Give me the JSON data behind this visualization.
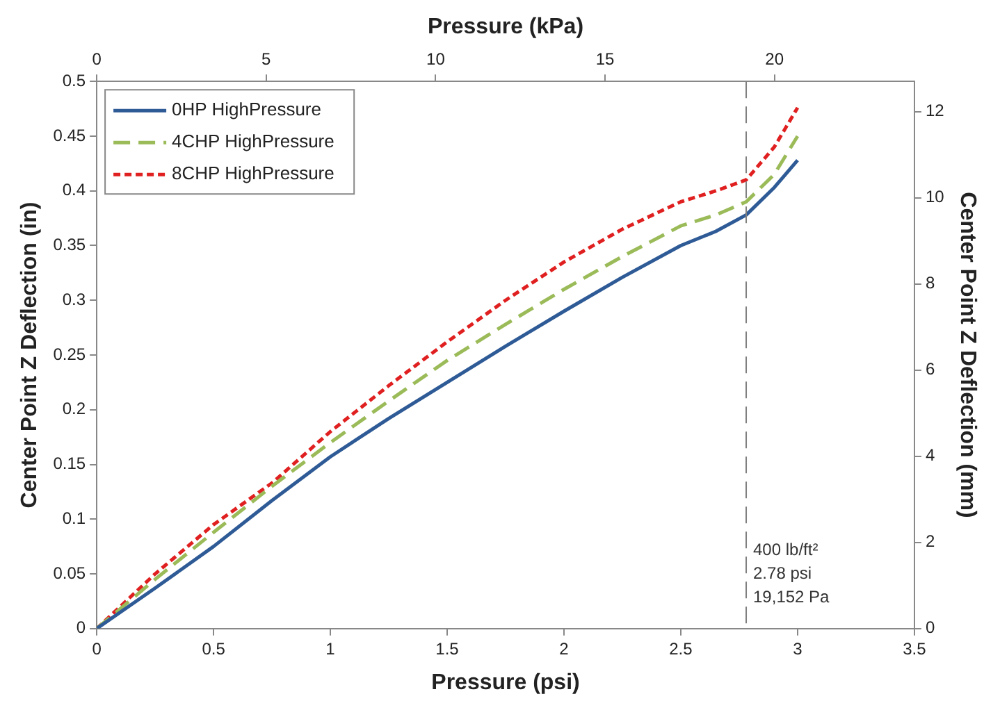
{
  "chart_data": {
    "type": "line",
    "xlabel": "Pressure (psi)",
    "ylabel": "Center Point Z Deflection (in)",
    "x2label": "Pressure (kPa)",
    "y2label": "Center Point Z Deflection (mm)",
    "xlim": [
      0,
      3.5
    ],
    "xticks": [
      0,
      0.5,
      1,
      1.5,
      2,
      2.5,
      3,
      3.5
    ],
    "ylim": [
      0,
      0.5
    ],
    "yticks": [
      0,
      0.05,
      0.1,
      0.15,
      0.2,
      0.25,
      0.3,
      0.35,
      0.4,
      0.45,
      0.5
    ],
    "x2lim": [
      0,
      24.13
    ],
    "x2ticks": [
      0,
      5,
      10,
      15,
      20
    ],
    "y2lim": [
      0,
      12.7
    ],
    "y2ticks": [
      0,
      2,
      4,
      6,
      8,
      10,
      12
    ],
    "grid": false,
    "legend": "top left",
    "marker": "none",
    "series": [
      {
        "name": "0HP HighPressure",
        "color": "#2e5a96",
        "line_style": "solid",
        "x": [
          0,
          0.25,
          0.5,
          0.75,
          1,
          1.25,
          1.5,
          1.75,
          2,
          2.25,
          2.5,
          2.65,
          2.78,
          2.9,
          3
        ],
        "values": [
          0,
          0.037,
          0.075,
          0.117,
          0.157,
          0.192,
          0.225,
          0.258,
          0.29,
          0.321,
          0.35,
          0.363,
          0.378,
          0.403,
          0.428
        ]
      },
      {
        "name": "4CHP HighPressure",
        "color": "#9bbb59",
        "line_style": "dashed",
        "x": [
          0,
          0.25,
          0.5,
          0.75,
          1,
          1.25,
          1.5,
          1.75,
          2,
          2.25,
          2.5,
          2.65,
          2.78,
          2.9,
          3
        ],
        "values": [
          0,
          0.045,
          0.088,
          0.13,
          0.17,
          0.208,
          0.245,
          0.278,
          0.31,
          0.34,
          0.368,
          0.378,
          0.39,
          0.415,
          0.45
        ]
      },
      {
        "name": "8CHP HighPressure",
        "color": "#e02020",
        "line_style": "dotted",
        "x": [
          0,
          0.25,
          0.5,
          0.75,
          1,
          1.25,
          1.5,
          1.75,
          2,
          2.25,
          2.5,
          2.65,
          2.78,
          2.9,
          3
        ],
        "values": [
          0,
          0.05,
          0.095,
          0.133,
          0.18,
          0.222,
          0.262,
          0.3,
          0.335,
          0.365,
          0.39,
          0.4,
          0.41,
          0.44,
          0.476
        ]
      }
    ],
    "ref_lines": [
      {
        "axis": "x",
        "value": 2.78,
        "label": "400 lb/ft²\n2.78 psi\n19,152 Pa",
        "color": "#808080",
        "line_style": "dashed"
      }
    ]
  }
}
